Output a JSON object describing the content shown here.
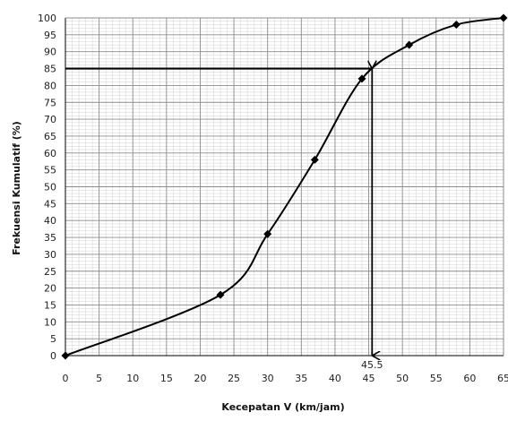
{
  "chart_data": {
    "type": "line",
    "xlabel": "Kecepatan V (km/jam)",
    "ylabel": "Frekuensi Kumulatif (%)",
    "xlim": [
      0,
      65
    ],
    "ylim": [
      0,
      100
    ],
    "x_ticks": [
      0,
      5,
      10,
      15,
      20,
      25,
      30,
      35,
      40,
      45,
      50,
      55,
      60,
      65
    ],
    "y_ticks": [
      0,
      5,
      10,
      15,
      20,
      25,
      30,
      35,
      40,
      45,
      50,
      55,
      60,
      65,
      70,
      75,
      80,
      85,
      90,
      95,
      100
    ],
    "grid": true,
    "colors": {
      "line": "#000000",
      "grid_major": "#8c8c8c",
      "grid_minor": "#d0d0d0"
    },
    "series": [
      {
        "x": [
          0,
          23,
          30,
          37,
          44,
          51,
          58,
          65
        ],
        "values": [
          0,
          18,
          36,
          58,
          82,
          92,
          98,
          100
        ]
      }
    ],
    "reference": {
      "y": 85,
      "x": 45.5,
      "label": "45.5"
    }
  }
}
